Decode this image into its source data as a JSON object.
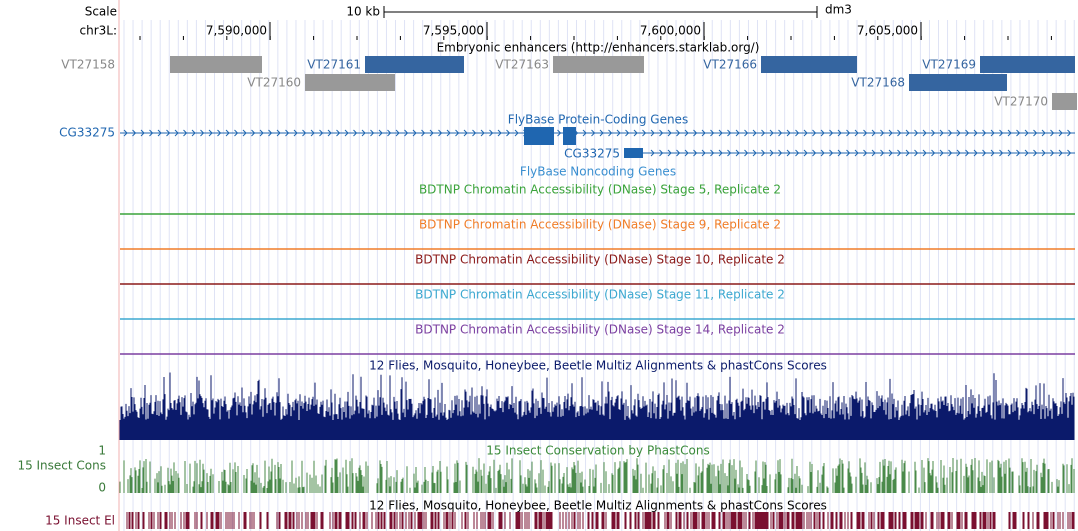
{
  "ruler": {
    "scale_label": "Scale",
    "scale_bar": "10 kb",
    "assembly": "dm3",
    "chrom": "chr3L:",
    "ticks": [
      "7,590,000",
      "7,595,000",
      "7,600,000",
      "7,605,000"
    ]
  },
  "enhancers": {
    "title": "Embryonic enhancers (http://enhancers.starklab.org/)",
    "items": [
      {
        "name": "VT27158",
        "color": "#999999"
      },
      {
        "name": "VT27161",
        "color": "#3565a0"
      },
      {
        "name": "VT27163",
        "color": "#999999"
      },
      {
        "name": "VT27166",
        "color": "#3565a0"
      },
      {
        "name": "VT27169",
        "color": "#3565a0"
      },
      {
        "name": "VT27160",
        "color": "#999999"
      },
      {
        "name": "VT27168",
        "color": "#3565a0"
      },
      {
        "name": "VT27170",
        "color": "#999999"
      }
    ]
  },
  "genes": {
    "left_label": "CG33275",
    "coding_title": "FlyBase Protein-Coding Genes",
    "noncoding_gene": "CG33275",
    "noncoding_title": "FlyBase Noncoding Genes"
  },
  "dnase": [
    {
      "title": "BDTNP Chromatin Accessibility (DNase) Stage 5, Replicate 2",
      "color": "#3aa33a"
    },
    {
      "title": "BDTNP Chromatin Accessibility (DNase) Stage 9, Replicate 2",
      "color": "#f07d28"
    },
    {
      "title": "BDTNP Chromatin Accessibility (DNase) Stage 10, Replicate 2",
      "color": "#8b1a1a"
    },
    {
      "title": "BDTNP Chromatin Accessibility (DNase) Stage 11, Replicate 2",
      "color": "#3ca8d0"
    },
    {
      "title": "BDTNP Chromatin Accessibility (DNase) Stage 14, Replicate 2",
      "color": "#7b3fa0"
    }
  ],
  "multiz": {
    "title": "12 Flies, Mosquito, Honeybee, Beetle Multiz Alignments & phastCons Scores"
  },
  "phastcons": {
    "title": "15 Insect Conservation by PhastCons",
    "left_label": "15 Insect Cons",
    "max_label": "1",
    "min_label": "0"
  },
  "elements": {
    "title": "12 Flies, Mosquito, Honeybee, Beetle Multiz Alignments & phastCons Scores",
    "left_label": "15 Insect El"
  }
}
